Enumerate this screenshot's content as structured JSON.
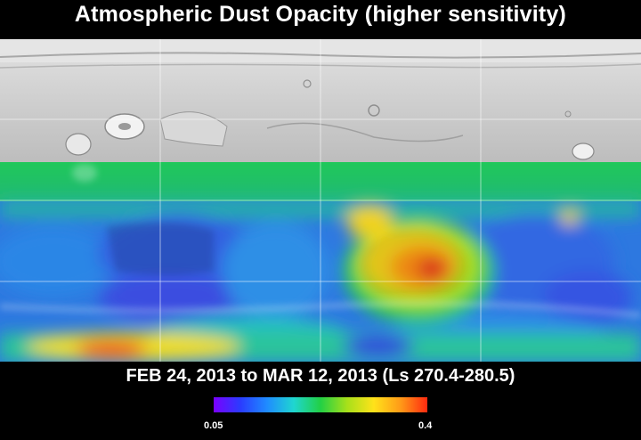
{
  "title": "Atmospheric Dust Opacity (higher sensitivity)",
  "date_range": "FEB 24, 2013 to MAR 12, 2013 (Ls 270.4-280.5)",
  "colorbar": {
    "min_label": "0.05",
    "max_label": "0.4",
    "min_value": 0.05,
    "max_value": 0.4,
    "colors": [
      "#7a00ff",
      "#2a3cff",
      "#1f8cff",
      "#1fd6d0",
      "#22d045",
      "#a8e01a",
      "#ffe21a",
      "#ff9a18",
      "#ff2a10"
    ]
  },
  "map": {
    "coverage_colors": {
      "no_data": "#c9c9c9",
      "low": "#3a6ee8",
      "mid": "#23c24a",
      "high": "#ffcc1a",
      "peak": "#e0261b"
    }
  }
}
